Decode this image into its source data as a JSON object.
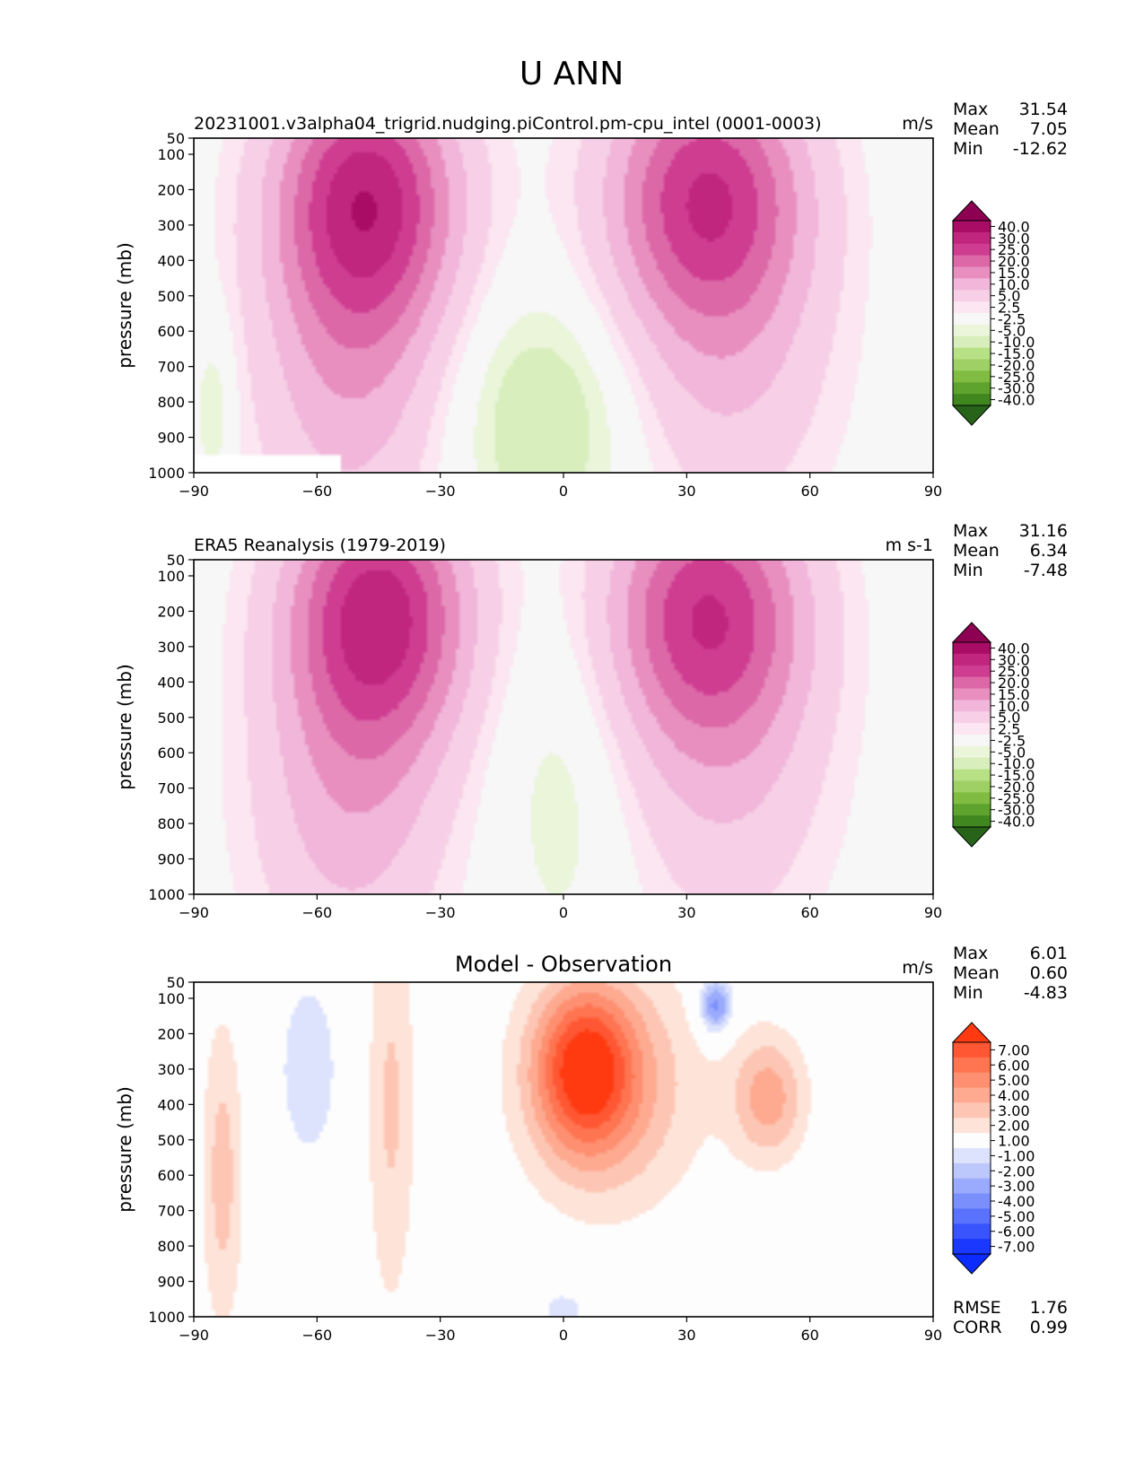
{
  "figure": {
    "title": "U ANN"
  },
  "chart_data": [
    {
      "type": "heatmap",
      "subtitle": "20231001.v3alpha04_trigrid.nudging.piControl.pm-cpu_intel (0001-0003)",
      "units": "m/s",
      "ylabel": "pressure (mb)",
      "x_ticks": [
        "−90",
        "−60",
        "−30",
        "0",
        "30",
        "60",
        "90"
      ],
      "y_ticks": [
        "50",
        "100",
        "200",
        "300",
        "400",
        "500",
        "600",
        "700",
        "800",
        "900",
        "1000"
      ],
      "xlim": [
        -90,
        90
      ],
      "ylim": [
        1000,
        50
      ],
      "stats": [
        {
          "label": "Max",
          "value": "31.54"
        },
        {
          "label": "Mean",
          "value": "7.05"
        },
        {
          "label": "Min",
          "value": "-12.62"
        }
      ],
      "colorbar": {
        "labels": [
          "40.0",
          "30.0",
          "25.0",
          "20.0",
          "15.0",
          "10.0",
          "5.0",
          "2.5",
          "-2.5",
          "-5.0",
          "-10.0",
          "-15.0",
          "-20.0",
          "-25.0",
          "-30.0",
          "-40.0"
        ],
        "colors": [
          "#8e0152",
          "#a80c64",
          "#c0267e",
          "#cf3d91",
          "#dc68a8",
          "#e88fbf",
          "#f1b6da",
          "#f7d0e7",
          "#fbe6f1",
          "#f7f7f7",
          "#eaf5da",
          "#d8eebc",
          "#b8e186",
          "#9ed065",
          "#7fbc41",
          "#5ea32e",
          "#40871f",
          "#276419"
        ],
        "extend": "both"
      },
      "fields": [
        {
          "name": "sh_jet",
          "lat": -48,
          "p": 220,
          "lat_width": 22,
          "p_width": 380,
          "value": 31.5
        },
        {
          "name": "sh_jet_lower",
          "lat": -52,
          "p": 750,
          "lat_width": 24,
          "p_width": 500,
          "value": 12
        },
        {
          "name": "nh_jet",
          "lat": 35,
          "p": 210,
          "lat_width": 24,
          "p_width": 380,
          "value": 28
        },
        {
          "name": "nh_jet_lower",
          "lat": 40,
          "p": 700,
          "lat_width": 26,
          "p_width": 500,
          "value": 9
        },
        {
          "name": "tropical_easterlies",
          "lat": -5,
          "p": 850,
          "lat_width": 22,
          "p_width": 350,
          "value": -9
        },
        {
          "name": "polar_easterlies",
          "lat": -85,
          "p": 820,
          "lat_width": 5,
          "p_width": 250,
          "value": -6
        }
      ],
      "missing_region": {
        "lat": [
          -90,
          -54
        ],
        "p": [
          950,
          1000
        ]
      }
    },
    {
      "type": "heatmap",
      "subtitle": "ERA5 Reanalysis (1979-2019)",
      "units": "m s-1",
      "ylabel": "pressure (mb)",
      "x_ticks": [
        "−90",
        "−60",
        "−30",
        "0",
        "30",
        "60",
        "90"
      ],
      "y_ticks": [
        "50",
        "100",
        "200",
        "300",
        "400",
        "500",
        "600",
        "700",
        "800",
        "900",
        "1000"
      ],
      "xlim": [
        -90,
        90
      ],
      "ylim": [
        1000,
        50
      ],
      "stats": [
        {
          "label": "Max",
          "value": "31.16"
        },
        {
          "label": "Mean",
          "value": "6.34"
        },
        {
          "label": "Min",
          "value": "-7.48"
        }
      ],
      "colorbar": {
        "labels": [
          "40.0",
          "30.0",
          "25.0",
          "20.0",
          "15.0",
          "10.0",
          "5.0",
          "2.5",
          "-2.5",
          "-5.0",
          "-10.0",
          "-15.0",
          "-20.0",
          "-25.0",
          "-30.0",
          "-40.0"
        ],
        "colors": [
          "#8e0152",
          "#a80c64",
          "#c0267e",
          "#cf3d91",
          "#dc68a8",
          "#e88fbf",
          "#f1b6da",
          "#f7d0e7",
          "#fbe6f1",
          "#f7f7f7",
          "#eaf5da",
          "#d8eebc",
          "#b8e186",
          "#9ed065",
          "#7fbc41",
          "#5ea32e",
          "#40871f",
          "#276419"
        ],
        "extend": "both"
      },
      "fields": [
        {
          "name": "sh_jet",
          "lat": -45,
          "p": 200,
          "lat_width": 22,
          "p_width": 380,
          "value": 31.2
        },
        {
          "name": "sh_jet_lower",
          "lat": -52,
          "p": 750,
          "lat_width": 24,
          "p_width": 500,
          "value": 12
        },
        {
          "name": "nh_jet",
          "lat": 35,
          "p": 200,
          "lat_width": 24,
          "p_width": 380,
          "value": 28
        },
        {
          "name": "nh_jet_lower",
          "lat": 40,
          "p": 700,
          "lat_width": 26,
          "p_width": 500,
          "value": 8
        },
        {
          "name": "tropical_easterlies",
          "lat": 0,
          "p": 700,
          "lat_width": 16,
          "p_width": 500,
          "value": -4.5
        }
      ]
    },
    {
      "type": "heatmap",
      "title": "Model - Observation",
      "units": "m/s",
      "ylabel": "pressure (mb)",
      "x_ticks": [
        "−90",
        "−60",
        "−30",
        "0",
        "30",
        "60",
        "90"
      ],
      "y_ticks": [
        "50",
        "100",
        "200",
        "300",
        "400",
        "500",
        "600",
        "700",
        "800",
        "900",
        "1000"
      ],
      "xlim": [
        -90,
        90
      ],
      "ylim": [
        1000,
        50
      ],
      "stats": [
        {
          "label": "Max",
          "value": "6.01"
        },
        {
          "label": "Mean",
          "value": "0.60"
        },
        {
          "label": "Min",
          "value": "-4.83"
        }
      ],
      "metrics": [
        {
          "label": "RMSE",
          "value": "1.76"
        },
        {
          "label": "CORR",
          "value": "0.99"
        }
      ],
      "colorbar": {
        "labels": [
          "7.00",
          "6.00",
          "5.00",
          "4.00",
          "3.00",
          "2.00",
          "1.00",
          "-1.00",
          "-2.00",
          "-3.00",
          "-4.00",
          "-5.00",
          "-6.00",
          "-7.00"
        ],
        "colors": [
          "#ff3a10",
          "#ff5733",
          "#ff7451",
          "#fe8f70",
          "#fdaa91",
          "#fdc6b4",
          "#fde3d8",
          "#fdfdfd",
          "#dde3fd",
          "#bcc8fc",
          "#9aaafc",
          "#7a8ffc",
          "#5a72fd",
          "#3954fd",
          "#1a38fe",
          "#0c2bff"
        ],
        "extend": "both"
      },
      "fields": [
        {
          "name": "tropical_upper",
          "lat": 5,
          "p": 300,
          "lat_width": 12,
          "p_width": 230,
          "value": 6
        },
        {
          "name": "tropical_spread",
          "lat": 12,
          "p": 350,
          "lat_width": 22,
          "p_width": 350,
          "value": 3
        },
        {
          "name": "nh_mid",
          "lat": 50,
          "p": 380,
          "lat_width": 9,
          "p_width": 180,
          "value": 3.5
        },
        {
          "name": "sh_mid",
          "lat": -42,
          "p": 400,
          "lat_width": 6,
          "p_width": 600,
          "value": 2.2
        },
        {
          "name": "sh_polar",
          "lat": -83,
          "p": 600,
          "lat_width": 5,
          "p_width": 450,
          "value": 2.5
        },
        {
          "name": "sh_upper_neg",
          "lat": -62,
          "p": 300,
          "lat_width": 9,
          "p_width": 330,
          "value": -1.5
        },
        {
          "name": "nh_upper_neg",
          "lat": 37,
          "p": 120,
          "lat_width": 4,
          "p_width": 80,
          "value": -4.8
        },
        {
          "name": "eq_surface_neg",
          "lat": 0,
          "p": 980,
          "lat_width": 6,
          "p_width": 60,
          "value": -1.6
        }
      ]
    }
  ]
}
